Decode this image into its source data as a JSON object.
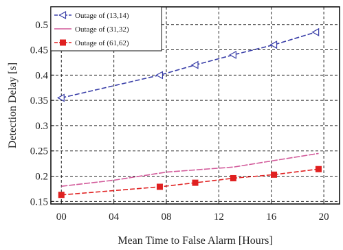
{
  "chart_data": {
    "type": "line",
    "title": "",
    "xlabel": "Mean Time to False Alarm [Hours]",
    "ylabel": "Detection Delay  [s]",
    "x_ticks": [
      "00",
      "04",
      "08",
      "12",
      "16",
      "20"
    ],
    "x_tick_values": [
      0,
      4,
      8,
      12,
      16,
      20
    ],
    "y_ticks": [
      "0.15",
      "0.2",
      "0.25",
      "0.3",
      "0.35",
      "0.4",
      "0.45",
      "0.5"
    ],
    "y_tick_values": [
      0.15,
      0.2,
      0.25,
      0.3,
      0.35,
      0.4,
      0.45,
      0.5
    ],
    "xlim": [
      -0.8,
      21.2
    ],
    "ylim": [
      0.145,
      0.535
    ],
    "grid": true,
    "legend_position": "top-left",
    "series": [
      {
        "name": "Outage of (13,14)",
        "color": "#3a3fa8",
        "marker": "triangle-left",
        "x": [
          0,
          7.5,
          10.2,
          13.1,
          16.2,
          19.4
        ],
        "y": [
          0.355,
          0.4,
          0.42,
          0.44,
          0.46,
          0.485
        ]
      },
      {
        "name": "Outage of (31,32)",
        "color": "#d25a9a",
        "marker": "none",
        "x": [
          0,
          4,
          8,
          12,
          13.1,
          16,
          19.6
        ],
        "y": [
          0.18,
          0.192,
          0.208,
          0.216,
          0.218,
          0.23,
          0.245
        ]
      },
      {
        "name": "Outage of (61,62)",
        "color": "#e02020",
        "marker": "square",
        "x": [
          0,
          7.5,
          10.2,
          13.1,
          16.2,
          19.6
        ],
        "y": [
          0.163,
          0.179,
          0.187,
          0.196,
          0.203,
          0.214
        ]
      }
    ]
  }
}
